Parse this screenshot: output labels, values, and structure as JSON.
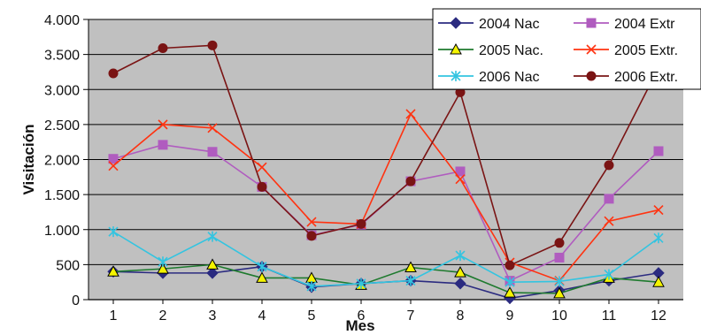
{
  "chart_data": {
    "type": "line",
    "title": "",
    "xlabel": "Mes",
    "ylabel": "Visitación",
    "ylim": [
      0,
      4000
    ],
    "yticks": [
      {
        "value": 0,
        "label": "0"
      },
      {
        "value": 500,
        "label": "500"
      },
      {
        "value": 1000,
        "label": "1.000"
      },
      {
        "value": 1500,
        "label": "1.500"
      },
      {
        "value": 2000,
        "label": "2.000"
      },
      {
        "value": 2500,
        "label": "2.500"
      },
      {
        "value": 3000,
        "label": "3.000"
      },
      {
        "value": 3500,
        "label": "3.500"
      },
      {
        "value": 4000,
        "label": "4.000"
      }
    ],
    "categories": [
      "1",
      "2",
      "3",
      "4",
      "5",
      "6",
      "7",
      "8",
      "9",
      "10",
      "11",
      "12"
    ],
    "grid": "horizontal",
    "plot_background": "#c0c0c0",
    "legend_position": "top-right",
    "series": [
      {
        "name": "2004 Nac",
        "color": "#2b2b80",
        "marker": "diamond",
        "values": [
          400,
          380,
          380,
          470,
          180,
          230,
          270,
          230,
          20,
          130,
          270,
          380
        ]
      },
      {
        "name": "2004 Extr",
        "color": "#b05cbf",
        "marker": "square",
        "values": [
          2010,
          2210,
          2110,
          1610,
          920,
          1070,
          1690,
          1830,
          270,
          600,
          1440,
          2120
        ]
      },
      {
        "name": "2005 Nac.",
        "color": "#1e7a2e",
        "marker": "triangle",
        "values": [
          400,
          440,
          500,
          310,
          310,
          210,
          460,
          390,
          100,
          90,
          310,
          250
        ]
      },
      {
        "name": "2005 Extr.",
        "color": "#ff3311",
        "marker": "x",
        "values": [
          1910,
          2500,
          2450,
          1890,
          1110,
          1080,
          2650,
          1720,
          530,
          270,
          1120,
          1280
        ]
      },
      {
        "name": "2006 Nac",
        "color": "#33c4e0",
        "marker": "asterisk",
        "values": [
          970,
          540,
          900,
          470,
          190,
          230,
          270,
          630,
          250,
          260,
          360,
          880
        ]
      },
      {
        "name": "2006 Extr.",
        "color": "#7a1414",
        "marker": "circle",
        "values": [
          3230,
          3590,
          3630,
          1610,
          910,
          1080,
          1690,
          2960,
          490,
          810,
          1920,
          3310
        ]
      }
    ]
  }
}
